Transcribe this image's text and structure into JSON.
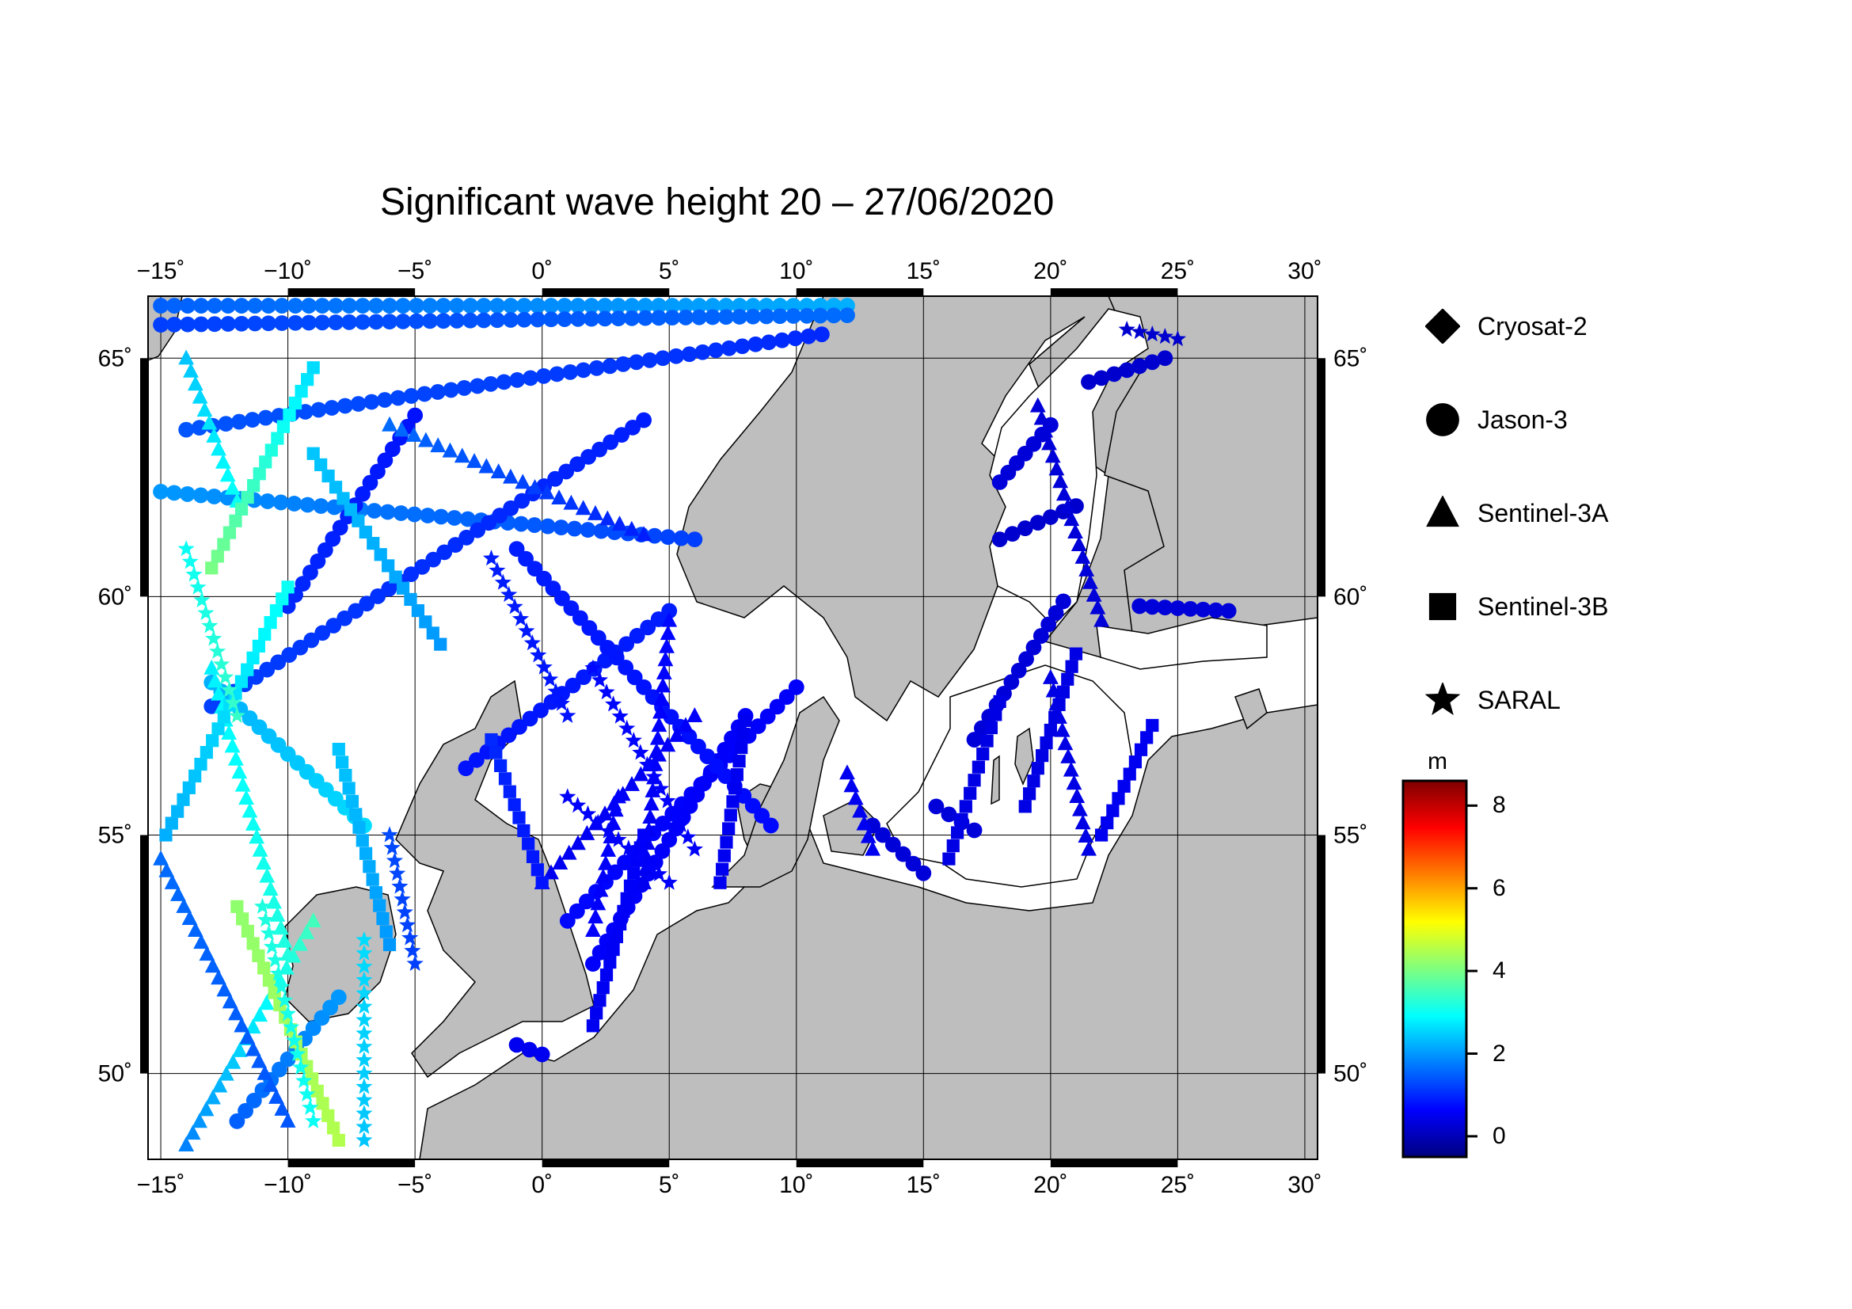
{
  "title": "Significant wave height 20 – 27/06/2020",
  "map": {
    "lon_range": [
      -15.5,
      30.5
    ],
    "lat_range": [
      48.2,
      66.3
    ],
    "lon_ticks": [
      -15,
      -10,
      -5,
      0,
      5,
      10,
      15,
      20,
      25,
      30
    ],
    "lon_tick_labels": [
      "−15˚",
      "−10˚",
      "−5˚",
      "0˚",
      "5˚",
      "10˚",
      "15˚",
      "20˚",
      "25˚",
      "30˚"
    ],
    "lat_ticks": [
      50,
      55,
      60,
      65
    ],
    "lat_tick_labels": [
      "50˚",
      "55˚",
      "60˚",
      "65˚"
    ],
    "land_color": "#bebebe",
    "sea_color": "#ffffff"
  },
  "legend": {
    "items": [
      {
        "label": "Cryosat-2",
        "marker": "diamond"
      },
      {
        "label": "Jason-3",
        "marker": "circle"
      },
      {
        "label": "Sentinel-3A",
        "marker": "triangle"
      },
      {
        "label": "Sentinel-3B",
        "marker": "square"
      },
      {
        "label": "SARAL",
        "marker": "star"
      }
    ]
  },
  "colorbar": {
    "unit": "m",
    "range": [
      -0.5,
      8.6
    ],
    "ticks": [
      0,
      2,
      4,
      6,
      8
    ],
    "tick_labels": [
      "0",
      "2",
      "4",
      "6",
      "8"
    ],
    "colormap": [
      "#00007f",
      "#0000ff",
      "#007fff",
      "#00ffff",
      "#7fff7f",
      "#ffff00",
      "#ff7f00",
      "#ff0000",
      "#7f0000"
    ]
  },
  "chart_data": {
    "type": "scatter",
    "xlabel": "",
    "ylabel": "",
    "series": [
      {
        "name": "Jason-3",
        "marker": "circle",
        "tracks": [
          {
            "from": [
              -15,
              66.1
            ],
            "to": [
              12,
              66.1
            ],
            "values": [
              1.5,
              2.2
            ]
          },
          {
            "from": [
              -15,
              65.7
            ],
            "to": [
              12,
              65.9
            ],
            "values": [
              1.2,
              1.6
            ]
          },
          {
            "from": [
              -14,
              63.5
            ],
            "to": [
              11,
              65.5
            ],
            "values": [
              1.4,
              1.0
            ]
          },
          {
            "from": [
              -15,
              62.2
            ],
            "to": [
              6,
              61.2
            ],
            "values": [
              2.0,
              1.2
            ]
          },
          {
            "from": [
              -13,
              57.7
            ],
            "to": [
              4,
              63.7
            ],
            "values": [
              1.2,
              0.9
            ]
          },
          {
            "from": [
              -10,
              59.8
            ],
            "to": [
              -5,
              63.8
            ],
            "values": [
              1.0,
              0.8
            ]
          },
          {
            "from": [
              -7,
              55.2
            ],
            "to": [
              -13,
              58.2
            ],
            "values": [
              2.6,
              2.2
            ]
          },
          {
            "from": [
              -3,
              56.4
            ],
            "to": [
              5,
              59.7
            ],
            "values": [
              0.8,
              0.9
            ]
          },
          {
            "from": [
              1,
              53.2
            ],
            "to": [
              10,
              58.1
            ],
            "values": [
              0.7,
              0.6
            ]
          },
          {
            "from": [
              2,
              52.3
            ],
            "to": [
              8,
              57.5
            ],
            "values": [
              0.6,
              0.6
            ]
          },
          {
            "from": [
              -1,
              61.0
            ],
            "to": [
              9,
              55.2
            ],
            "values": [
              0.9,
              0.7
            ]
          },
          {
            "from": [
              -12,
              49.0
            ],
            "to": [
              -8,
              51.6
            ],
            "values": [
              1.5,
              2.0
            ]
          },
          {
            "from": [
              -1,
              50.6
            ],
            "to": [
              0,
              50.4
            ],
            "values": [
              0.5,
              0.5
            ]
          },
          {
            "from": [
              13,
              55.2
            ],
            "to": [
              15,
              54.2
            ],
            "values": [
              0.3,
              0.3
            ]
          },
          {
            "from": [
              15.5,
              55.6
            ],
            "to": [
              17,
              55.1
            ],
            "values": [
              0.3,
              0.3
            ]
          },
          {
            "from": [
              17,
              57.0
            ],
            "to": [
              20.5,
              59.9
            ],
            "values": [
              0.3,
              0.3
            ]
          },
          {
            "from": [
              18,
              61.2
            ],
            "to": [
              21,
              61.9
            ],
            "values": [
              0.2,
              0.2
            ]
          },
          {
            "from": [
              18,
              62.4
            ],
            "to": [
              20,
              63.6
            ],
            "values": [
              0.3,
              0.3
            ]
          },
          {
            "from": [
              21.5,
              64.5
            ],
            "to": [
              24.5,
              65.0
            ],
            "values": [
              0.2,
              0.2
            ]
          },
          {
            "from": [
              23.5,
              59.8
            ],
            "to": [
              27,
              59.7
            ],
            "values": [
              0.3,
              0.3
            ]
          }
        ]
      },
      {
        "name": "Sentinel-3A",
        "marker": "triangle",
        "tracks": [
          {
            "from": [
              -14,
              48.5
            ],
            "to": [
              -9,
              53.2
            ],
            "values": [
              1.8,
              3.5
            ]
          },
          {
            "from": [
              -15,
              54.5
            ],
            "to": [
              -10,
              49.0
            ],
            "values": [
              1.6,
              1.4
            ]
          },
          {
            "from": [
              -6,
              63.6
            ],
            "to": [
              4,
              61.3
            ],
            "values": [
              1.6,
              0.9
            ]
          },
          {
            "from": [
              0,
              54.0
            ],
            "to": [
              6,
              57.5
            ],
            "values": [
              0.5,
              0.6
            ]
          },
          {
            "from": [
              3,
              55.8
            ],
            "to": [
              2,
              53.0
            ],
            "values": [
              0.6,
              0.6
            ]
          },
          {
            "from": [
              12,
              56.3
            ],
            "to": [
              13,
              54.7
            ],
            "values": [
              0.5,
              0.5
            ]
          },
          {
            "from": [
              20,
              58.3
            ],
            "to": [
              21.5,
              54.7
            ],
            "values": [
              0.4,
              0.4
            ]
          },
          {
            "from": [
              22,
              59.5
            ],
            "to": [
              19.5,
              64.0
            ],
            "values": [
              0.3,
              0.3
            ]
          },
          {
            "from": [
              4,
              54.0
            ],
            "to": [
              5,
              59.5
            ],
            "values": [
              0.5,
              0.7
            ]
          },
          {
            "from": [
              -12,
              62.0
            ],
            "to": [
              -14,
              65.0
            ],
            "values": [
              3.0,
              2.4
            ]
          },
          {
            "from": [
              -13,
              58.5
            ],
            "to": [
              -10,
              52.5
            ],
            "values": [
              2.8,
              3.2
            ]
          }
        ]
      },
      {
        "name": "Sentinel-3B",
        "marker": "square",
        "tracks": [
          {
            "from": [
              -13,
              60.6
            ],
            "to": [
              -9,
              64.8
            ],
            "values": [
              4.0,
              2.6
            ]
          },
          {
            "from": [
              -14.8,
              55.0
            ],
            "to": [
              -10,
              60.2
            ],
            "values": [
              2.2,
              3.0
            ]
          },
          {
            "from": [
              -12,
              53.5
            ],
            "to": [
              -8,
              48.6
            ],
            "values": [
              4.2,
              4.5
            ]
          },
          {
            "from": [
              -8,
              56.8
            ],
            "to": [
              -6,
              52.7
            ],
            "values": [
              2.4,
              2.0
            ]
          },
          {
            "from": [
              -2,
              57.0
            ],
            "to": [
              0,
              54.0
            ],
            "values": [
              1.0,
              0.8
            ]
          },
          {
            "from": [
              2,
              51.0
            ],
            "to": [
              4,
              55.0
            ],
            "values": [
              0.5,
              0.6
            ]
          },
          {
            "from": [
              8,
              57.4
            ],
            "to": [
              7,
              54.0
            ],
            "values": [
              0.5,
              0.5
            ]
          },
          {
            "from": [
              16,
              54.5
            ],
            "to": [
              18,
              57.8
            ],
            "values": [
              0.4,
              0.4
            ]
          },
          {
            "from": [
              19,
              55.6
            ],
            "to": [
              21,
              58.8
            ],
            "values": [
              0.4,
              0.4
            ]
          },
          {
            "from": [
              22,
              55.0
            ],
            "to": [
              24,
              57.3
            ],
            "values": [
              0.5,
              0.5
            ]
          },
          {
            "from": [
              -4,
              59.0
            ],
            "to": [
              -9,
              63.0
            ],
            "values": [
              2.0,
              2.4
            ]
          }
        ]
      },
      {
        "name": "SARAL",
        "marker": "star",
        "tracks": [
          {
            "from": [
              -9,
              49.0
            ],
            "to": [
              -11,
              53.5
            ],
            "values": [
              3.0,
              3.2
            ]
          },
          {
            "from": [
              -7,
              48.6
            ],
            "to": [
              -7,
              52.8
            ],
            "values": [
              2.4,
              2.6
            ]
          },
          {
            "from": [
              -5,
              52.3
            ],
            "to": [
              -6,
              55.0
            ],
            "values": [
              1.2,
              1.3
            ]
          },
          {
            "from": [
              2,
              58.5
            ],
            "to": [
              6,
              54.7
            ],
            "values": [
              0.7,
              0.6
            ]
          },
          {
            "from": [
              1,
              55.8
            ],
            "to": [
              5,
              54.0
            ],
            "values": [
              0.6,
              0.6
            ]
          },
          {
            "from": [
              -2,
              60.8
            ],
            "to": [
              1,
              57.5
            ],
            "values": [
              0.9,
              0.8
            ]
          },
          {
            "from": [
              -12,
              57.5
            ],
            "to": [
              -14,
              61.0
            ],
            "values": [
              3.4,
              3.0
            ]
          },
          {
            "from": [
              23,
              65.6
            ],
            "to": [
              25,
              65.4
            ],
            "values": [
              0.2,
              0.2
            ]
          }
        ]
      },
      {
        "name": "Cryosat-2",
        "marker": "diamond",
        "tracks": []
      }
    ]
  }
}
